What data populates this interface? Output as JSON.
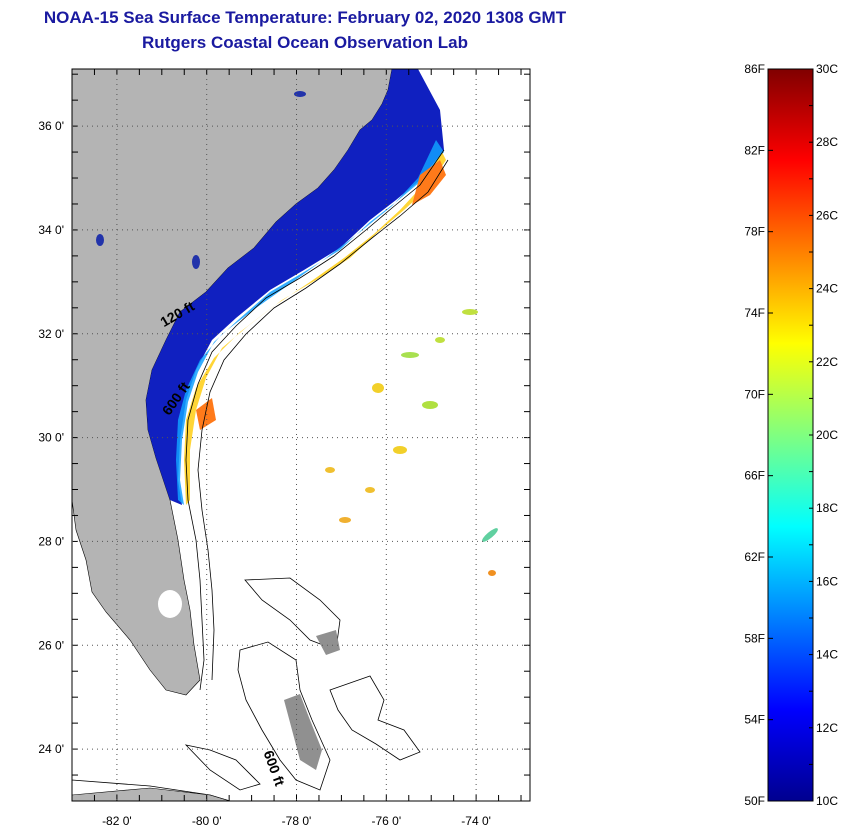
{
  "title": "NOAA-15 Sea Surface Temperature:  February 02, 2020 1308 GMT",
  "subtitle": "Rutgers Coastal Ocean Observation Lab",
  "map": {
    "lon_range": [
      -83,
      -72.8
    ],
    "lat_range": [
      23,
      37.1
    ],
    "lat_ticks": [
      {
        "value": 36,
        "label": "36 0'"
      },
      {
        "value": 34,
        "label": "34 0'"
      },
      {
        "value": 32,
        "label": "32 0'"
      },
      {
        "value": 30,
        "label": "30 0'"
      },
      {
        "value": 28,
        "label": "28 0'"
      },
      {
        "value": 26,
        "label": "26 0'"
      },
      {
        "value": 24,
        "label": "24 0'"
      }
    ],
    "lon_ticks": [
      {
        "value": -82,
        "label": "-82 0'"
      },
      {
        "value": -80,
        "label": "-80 0'"
      },
      {
        "value": -78,
        "label": "-78 0'"
      },
      {
        "value": -76,
        "label": "-76 0'"
      },
      {
        "value": -74,
        "label": "-74 0'"
      }
    ],
    "grid": true,
    "contour_labels": [
      {
        "text": "120 ft",
        "lon": -80.6,
        "lat": 32.3
      },
      {
        "text": "600 ft",
        "lon": -80.6,
        "lat": 30.7
      },
      {
        "text": "600 ft",
        "lon": -78.6,
        "lat": 23.6
      }
    ],
    "colors": {
      "land": "#b4b4b4",
      "grid": "#555555"
    }
  },
  "colorbar": {
    "range_c": [
      10,
      30
    ],
    "range_f": [
      50,
      86
    ],
    "f_labels": [
      "86F",
      "82F",
      "78F",
      "74F",
      "70F",
      "66F",
      "62F",
      "58F",
      "54F",
      "50F"
    ],
    "c_labels": [
      "30C",
      "28C",
      "26C",
      "24C",
      "22C",
      "20C",
      "18C",
      "16C",
      "14C",
      "12C",
      "10C"
    ],
    "colormap": [
      "#00008f",
      "#0000ff",
      "#0080ff",
      "#00ffff",
      "#80ff80",
      "#ffff00",
      "#ff8000",
      "#ff0000",
      "#800000"
    ]
  }
}
